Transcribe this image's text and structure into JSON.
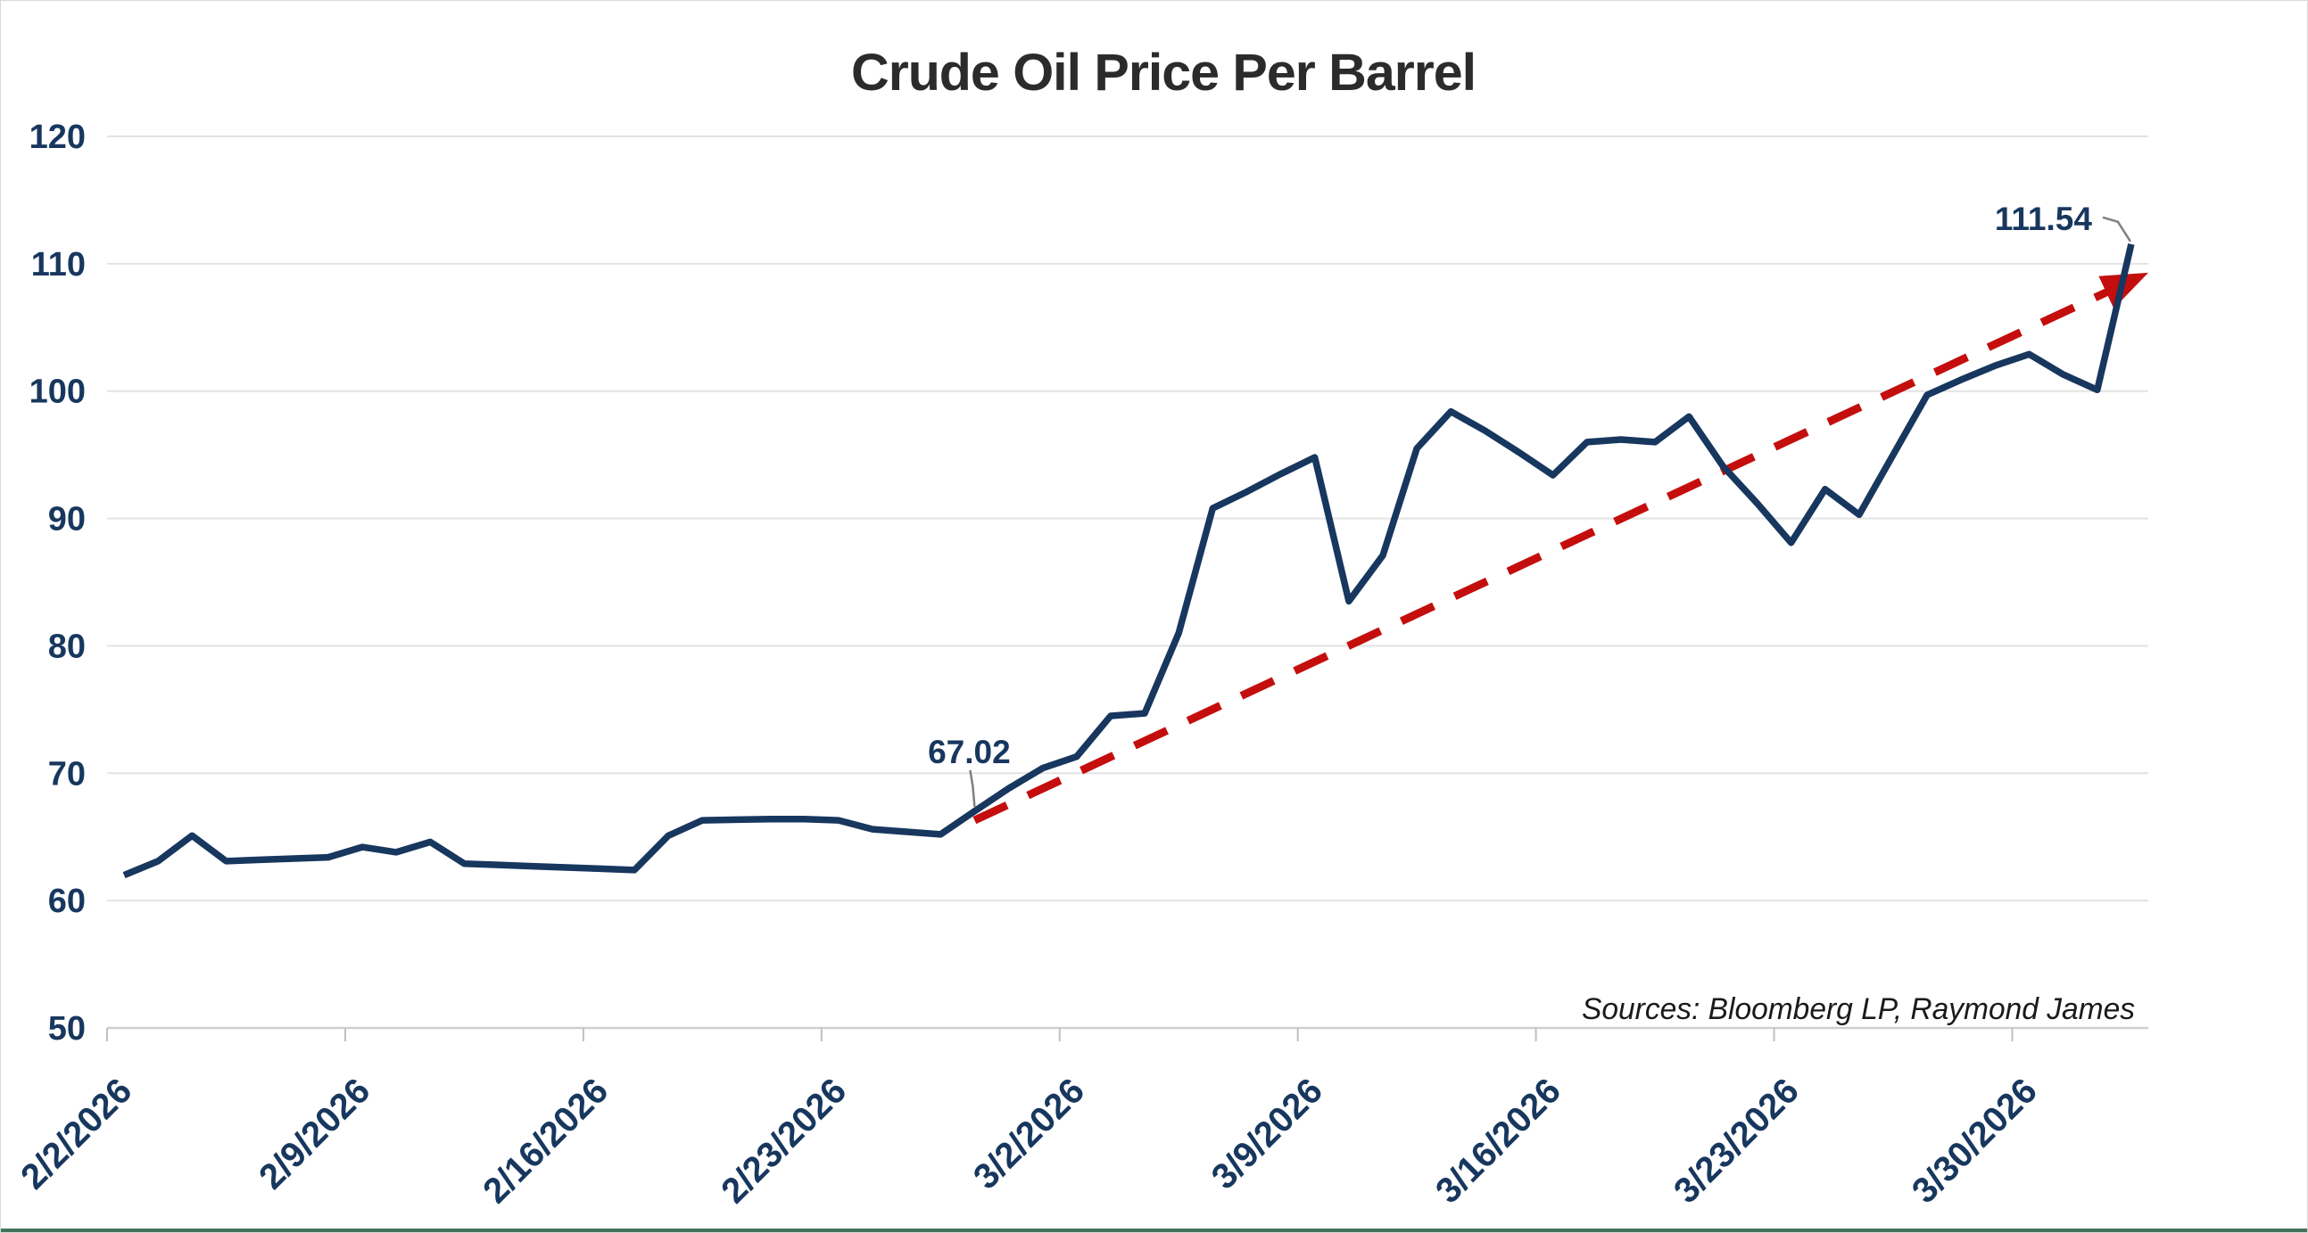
{
  "title": "Crude Oil Price Per Barrel",
  "source_note": "Sources: Bloomberg LP, Raymond James",
  "colors": {
    "series_line": "#17375E",
    "trend_line": "#C40E0E",
    "axis_text": "#17375E",
    "title_text": "#2B2B2B",
    "source_text": "#1A1A1A",
    "gridline": "#E3E3E3",
    "leader_line": "#808080",
    "bottom_edge_strip": "#44735A"
  },
  "chart_data": {
    "type": "line",
    "title": "Crude Oil Price Per Barrel",
    "xlabel": "",
    "ylabel": "",
    "ylim": [
      50,
      120
    ],
    "y_ticks": [
      50,
      60,
      70,
      80,
      90,
      100,
      110,
      120
    ],
    "grid": "horizontal",
    "legend": "none",
    "x_tick_labels": [
      "2/2/2026",
      "2/9/2026",
      "2/16/2026",
      "2/23/2026",
      "3/2/2026",
      "3/9/2026",
      "3/16/2026",
      "3/23/2026",
      "3/30/2026"
    ],
    "x_tick_day_offsets": [
      0,
      7,
      14,
      21,
      28,
      35,
      42,
      49,
      56
    ],
    "dates": [
      "2/2/2026",
      "2/3/2026",
      "2/4/2026",
      "2/5/2026",
      "2/6/2026",
      "2/7/2026",
      "2/8/2026",
      "2/9/2026",
      "2/10/2026",
      "2/11/2026",
      "2/12/2026",
      "2/13/2026",
      "2/14/2026",
      "2/15/2026",
      "2/16/2026",
      "2/17/2026",
      "2/18/2026",
      "2/19/2026",
      "2/20/2026",
      "2/21/2026",
      "2/22/2026",
      "2/23/2026",
      "2/24/2026",
      "2/25/2026",
      "2/26/2026",
      "2/27/2026",
      "2/28/2026",
      "3/1/2026",
      "3/2/2026",
      "3/3/2026",
      "3/4/2026",
      "3/5/2026",
      "3/6/2026",
      "3/7/2026",
      "3/8/2026",
      "3/9/2026",
      "3/10/2026",
      "3/11/2026",
      "3/12/2026",
      "3/13/2026",
      "3/14/2026",
      "3/15/2026",
      "3/16/2026",
      "3/17/2026",
      "3/18/2026",
      "3/19/2026",
      "3/20/2026",
      "3/21/2026",
      "3/22/2026",
      "3/23/2026",
      "3/24/2026",
      "3/25/2026",
      "3/26/2026",
      "3/27/2026",
      "3/28/2026",
      "3/29/2026",
      "3/30/2026",
      "3/31/2026",
      "4/1/2026",
      "4/2/2026"
    ],
    "values": [
      62.0,
      63.1,
      65.1,
      63.1,
      63.2,
      63.3,
      63.4,
      64.2,
      63.8,
      64.6,
      62.9,
      62.8,
      62.7,
      62.6,
      62.5,
      62.4,
      65.1,
      66.3,
      66.35,
      66.4,
      66.4,
      66.3,
      65.6,
      65.4,
      65.2,
      67.02,
      68.8,
      70.4,
      71.3,
      74.5,
      74.7,
      81.0,
      90.8,
      92.1,
      93.5,
      94.8,
      83.5,
      87.1,
      95.5,
      98.4,
      96.9,
      95.2,
      93.4,
      96.0,
      96.2,
      96.0,
      98.0,
      94.1,
      91.2,
      88.1,
      92.3,
      90.3,
      95.0,
      99.7,
      100.9,
      102.0,
      102.9,
      101.3,
      100.1,
      111.54
    ],
    "annotations": [
      {
        "label": "67.02",
        "date": "2/27/2026",
        "index": 25,
        "value": 67.02
      },
      {
        "label": "111.54",
        "date": "4/2/2026",
        "index": 59,
        "value": 111.54
      }
    ],
    "trendline": {
      "style": "dashed_arrow",
      "start_index": 25,
      "start_value": 66.3,
      "end_value": 109.3
    }
  }
}
